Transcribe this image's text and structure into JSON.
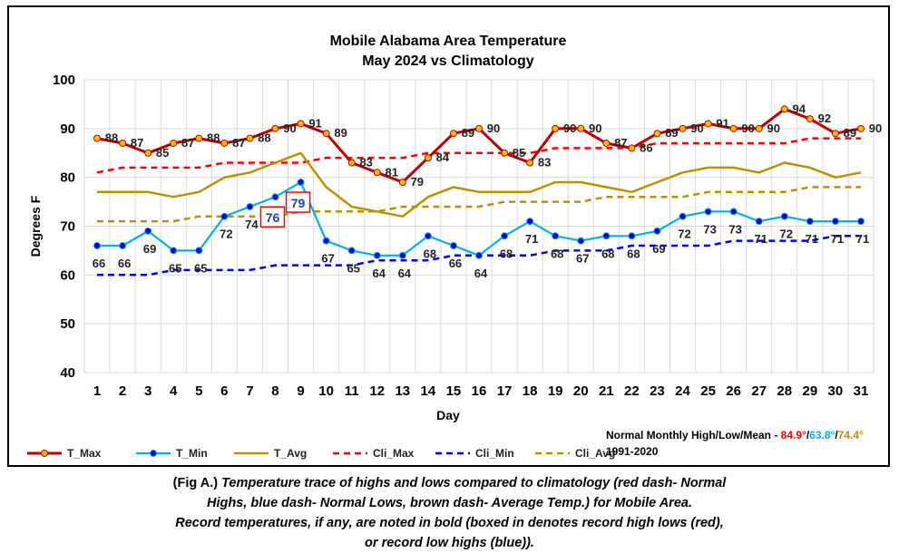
{
  "chart_data": {
    "type": "line",
    "title": "Mobile Alabama Area Temperature",
    "subtitle": "May 2024 vs Climatology",
    "xlabel": "Day",
    "ylabel": "Degrees F",
    "ylim": [
      40,
      100
    ],
    "yticks": [
      40,
      50,
      60,
      70,
      80,
      90,
      100
    ],
    "grid": true,
    "legend_position": "bottom",
    "categories": [
      1,
      2,
      3,
      4,
      5,
      6,
      7,
      8,
      9,
      10,
      11,
      12,
      13,
      14,
      15,
      16,
      17,
      18,
      19,
      20,
      21,
      22,
      23,
      24,
      25,
      26,
      27,
      28,
      29,
      30,
      31
    ],
    "series": [
      {
        "name": "T_Max",
        "color": "#C00000",
        "marker_fill": "#FFC000",
        "values": [
          88,
          87,
          85,
          87,
          88,
          87,
          88,
          90,
          91,
          89,
          83,
          81,
          79,
          84,
          89,
          90,
          85,
          83,
          90,
          90,
          87,
          86,
          89,
          90,
          91,
          90,
          90,
          94,
          92,
          89,
          90
        ]
      },
      {
        "name": "T_Min",
        "color": "#00B0F0",
        "marker_fill": "#0000CC",
        "values": [
          66,
          66,
          69,
          65,
          65,
          72,
          74,
          76,
          79,
          67,
          65,
          64,
          64,
          68,
          66,
          64,
          68,
          71,
          68,
          67,
          68,
          68,
          69,
          72,
          73,
          73,
          71,
          72,
          71,
          71,
          71
        ]
      },
      {
        "name": "T_Avg",
        "color": "#BF9000",
        "values": [
          77,
          77,
          77,
          76,
          77,
          80,
          81,
          83,
          85,
          78,
          74,
          73,
          72,
          76,
          78,
          77,
          77,
          77,
          79,
          79,
          78,
          77,
          79,
          81,
          82,
          82,
          81,
          83,
          82,
          80,
          81
        ]
      },
      {
        "name": "Cli_Max",
        "color": "#FF0000",
        "values": [
          81,
          82,
          82,
          82,
          82,
          83,
          83,
          83,
          83,
          84,
          84,
          84,
          84,
          85,
          85,
          85,
          85,
          85,
          86,
          86,
          86,
          86,
          87,
          87,
          87,
          87,
          87,
          87,
          88,
          88,
          88
        ]
      },
      {
        "name": "Cli_Min",
        "color": "#0000FF",
        "values": [
          60,
          60,
          60,
          61,
          61,
          61,
          61,
          62,
          62,
          62,
          62,
          63,
          63,
          63,
          64,
          64,
          64,
          64,
          65,
          65,
          65,
          66,
          66,
          66,
          66,
          67,
          67,
          67,
          67,
          68,
          68
        ]
      },
      {
        "name": "Cli_Avg",
        "color": "#BF9000",
        "values": [
          71,
          71,
          71,
          71,
          72,
          72,
          72,
          72,
          73,
          73,
          73,
          73,
          74,
          74,
          74,
          74,
          75,
          75,
          75,
          75,
          76,
          76,
          76,
          76,
          77,
          77,
          77,
          77,
          78,
          78,
          78
        ]
      }
    ],
    "max_labels": [
      "88",
      "87",
      "85",
      "87",
      "88",
      "87",
      "88",
      "90",
      "91",
      "89",
      "83",
      "81",
      "79",
      "84",
      "89",
      "90",
      "85",
      "83",
      "90",
      "90",
      "87",
      "86",
      "89",
      "90",
      "91",
      "90",
      "90",
      "94",
      "92",
      "89",
      "90"
    ],
    "min_labels": [
      "66",
      "66",
      "69",
      "65",
      "65",
      "72",
      "74",
      "76",
      "79",
      "67",
      "65",
      "64",
      "64",
      "68",
      "66",
      "64",
      "68",
      "71",
      "68",
      "67",
      "68",
      "68",
      "69",
      "72",
      "73",
      "73",
      "71",
      "72",
      "71",
      "71",
      "71"
    ],
    "record_boxes": [
      {
        "day": 8,
        "label": "76"
      },
      {
        "day": 9,
        "label": "79"
      }
    ],
    "annotation": {
      "label": "Normal Monthly High/Low/Mean - ",
      "high": "84.9°",
      "low": "63.8°",
      "mean": "74.4°",
      "sep": "/",
      "period": "1991-2020",
      "high_color": "#FF0000",
      "low_color": "#00B0F0",
      "mean_color": "#BF9000"
    }
  },
  "caption": {
    "lead": "(Fig A.) ",
    "line1": "Temperature trace of highs and lows compared to climatology (red dash- Normal",
    "line2": "Highs, blue dash- Normal Lows, brown dash- Average Temp.) for Mobile Area.",
    "line3": "Record temperatures, if any, are noted in bold (boxed in denotes record high lows (red),",
    "line4": "or record low highs (blue))."
  }
}
